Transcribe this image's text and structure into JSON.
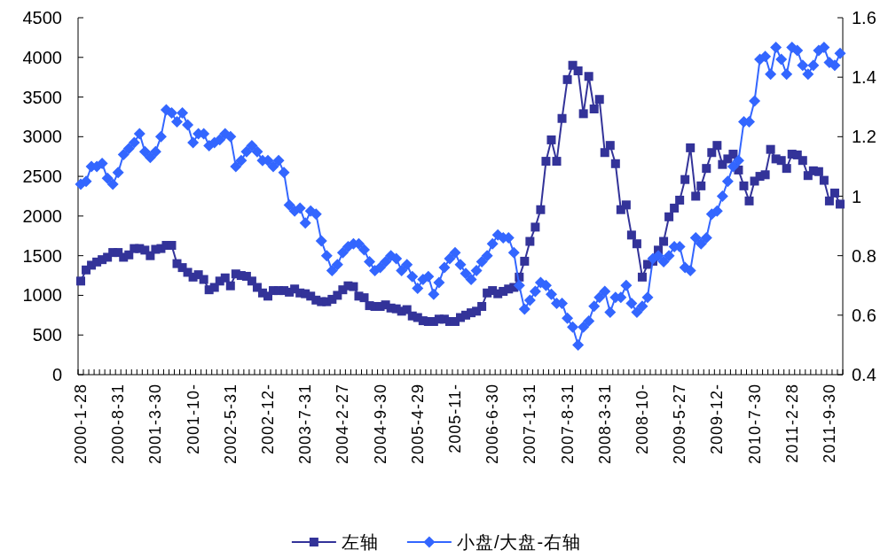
{
  "chart_data": {
    "type": "line",
    "categories": [
      "2000-1-28",
      null,
      null,
      null,
      null,
      null,
      null,
      "2000-8-31",
      null,
      null,
      null,
      null,
      null,
      null,
      "2001-3-30",
      null,
      null,
      null,
      null,
      null,
      null,
      "2001-10-",
      null,
      null,
      null,
      null,
      null,
      null,
      "2002-5-31",
      null,
      null,
      null,
      null,
      null,
      null,
      "2002-12-",
      null,
      null,
      null,
      null,
      null,
      null,
      "2003-7-31",
      null,
      null,
      null,
      null,
      null,
      null,
      "2004-2-27",
      null,
      null,
      null,
      null,
      null,
      null,
      "2004-9-30",
      null,
      null,
      null,
      null,
      null,
      null,
      "2005-4-29",
      null,
      null,
      null,
      null,
      null,
      null,
      "2005-11-",
      null,
      null,
      null,
      null,
      null,
      null,
      "2006-6-30",
      null,
      null,
      null,
      null,
      null,
      null,
      "2007-1-31",
      null,
      null,
      null,
      null,
      null,
      null,
      "2007-8-31",
      null,
      null,
      null,
      null,
      null,
      null,
      "2008-3-31",
      null,
      null,
      null,
      null,
      null,
      null,
      "2008-10-",
      null,
      null,
      null,
      null,
      null,
      null,
      "2009-5-27",
      null,
      null,
      null,
      null,
      null,
      null,
      "2009-12-",
      null,
      null,
      null,
      null,
      null,
      null,
      "2010-7-30",
      null,
      null,
      null,
      null,
      null,
      null,
      "2011-2-28",
      null,
      null,
      null,
      null,
      null,
      null,
      "2011-9-30",
      null,
      null
    ],
    "series": [
      {
        "name": "左轴",
        "color": "#333399",
        "marker": "square",
        "values": [
          1180,
          1320,
          1380,
          1420,
          1450,
          1480,
          1540,
          1540,
          1480,
          1510,
          1590,
          1590,
          1570,
          1500,
          1580,
          1590,
          1630,
          1630,
          1400,
          1350,
          1290,
          1230,
          1260,
          1200,
          1070,
          1100,
          1180,
          1220,
          1120,
          1270,
          1250,
          1240,
          1180,
          1100,
          1030,
          990,
          1060,
          1060,
          1060,
          1040,
          1080,
          1030,
          1020,
          990,
          940,
          920,
          920,
          950,
          1000,
          1070,
          1120,
          1110,
          990,
          970,
          870,
          860,
          860,
          880,
          840,
          830,
          800,
          820,
          740,
          720,
          680,
          670,
          670,
          700,
          700,
          670,
          670,
          720,
          750,
          780,
          800,
          860,
          1030,
          1060,
          1020,
          1050,
          1080,
          1100,
          1230,
          1430,
          1680,
          1860,
          2080,
          2690,
          2960,
          2690,
          3230,
          3720,
          3900,
          3830,
          3290,
          3760,
          3350,
          3470,
          2800,
          2890,
          2660,
          2080,
          2140,
          1760,
          1650,
          1230,
          1390,
          1430,
          1570,
          1680,
          1990,
          2100,
          2200,
          2460,
          2860,
          2250,
          2380,
          2600,
          2800,
          2890,
          2650,
          2720,
          2780,
          2580,
          2380,
          2190,
          2440,
          2500,
          2520,
          2840,
          2720,
          2700,
          2600,
          2780,
          2770,
          2700,
          2510,
          2570,
          2560,
          2450,
          2190,
          2290,
          2150
        ]
      },
      {
        "name": "小盘/大盘-右轴",
        "color": "#3366ff",
        "marker": "diamond",
        "axis": "y2",
        "values": [
          1.04,
          1.05,
          1.1,
          1.1,
          1.11,
          1.06,
          1.04,
          1.08,
          1.14,
          1.16,
          1.18,
          1.21,
          1.15,
          1.13,
          1.15,
          1.2,
          1.29,
          1.28,
          1.25,
          1.28,
          1.24,
          1.18,
          1.21,
          1.21,
          1.17,
          1.18,
          1.19,
          1.21,
          1.2,
          1.1,
          1.12,
          1.15,
          1.17,
          1.15,
          1.12,
          1.12,
          1.1,
          1.12,
          1.08,
          0.97,
          0.95,
          0.96,
          0.91,
          0.95,
          0.94,
          0.85,
          0.8,
          0.75,
          0.77,
          0.81,
          0.83,
          0.84,
          0.84,
          0.82,
          0.78,
          0.75,
          0.76,
          0.78,
          0.8,
          0.79,
          0.75,
          0.77,
          0.73,
          0.69,
          0.72,
          0.73,
          0.67,
          0.71,
          0.76,
          0.79,
          0.81,
          0.77,
          0.74,
          0.72,
          0.75,
          0.78,
          0.8,
          0.84,
          0.87,
          0.86,
          0.86,
          0.81,
          0.7,
          0.62,
          0.65,
          0.68,
          0.71,
          0.7,
          0.67,
          0.64,
          0.64,
          0.59,
          0.56,
          0.5,
          0.56,
          0.58,
          0.63,
          0.66,
          0.68,
          0.61,
          0.66,
          0.66,
          0.7,
          0.64,
          0.61,
          0.63,
          0.66,
          0.79,
          0.8,
          0.78,
          0.8,
          0.83,
          0.83,
          0.76,
          0.75,
          0.86,
          0.84,
          0.86,
          0.94,
          0.95,
          1.0,
          1.05,
          1.1,
          1.12,
          1.25,
          1.25,
          1.32,
          1.46,
          1.47,
          1.41,
          1.5,
          1.46,
          1.41,
          1.5,
          1.49,
          1.44,
          1.41,
          1.44,
          1.49,
          1.5,
          1.45,
          1.44,
          1.48
        ]
      }
    ],
    "ylim": [
      0,
      4500
    ],
    "yticks": [
      0,
      500,
      1000,
      1500,
      2000,
      2500,
      3000,
      3500,
      4000,
      4500
    ],
    "y2lim": [
      0.4,
      1.6
    ],
    "y2ticks": [
      0.4,
      0.6,
      0.8,
      1,
      1.2,
      1.4,
      1.6
    ],
    "legend": "bottom"
  }
}
